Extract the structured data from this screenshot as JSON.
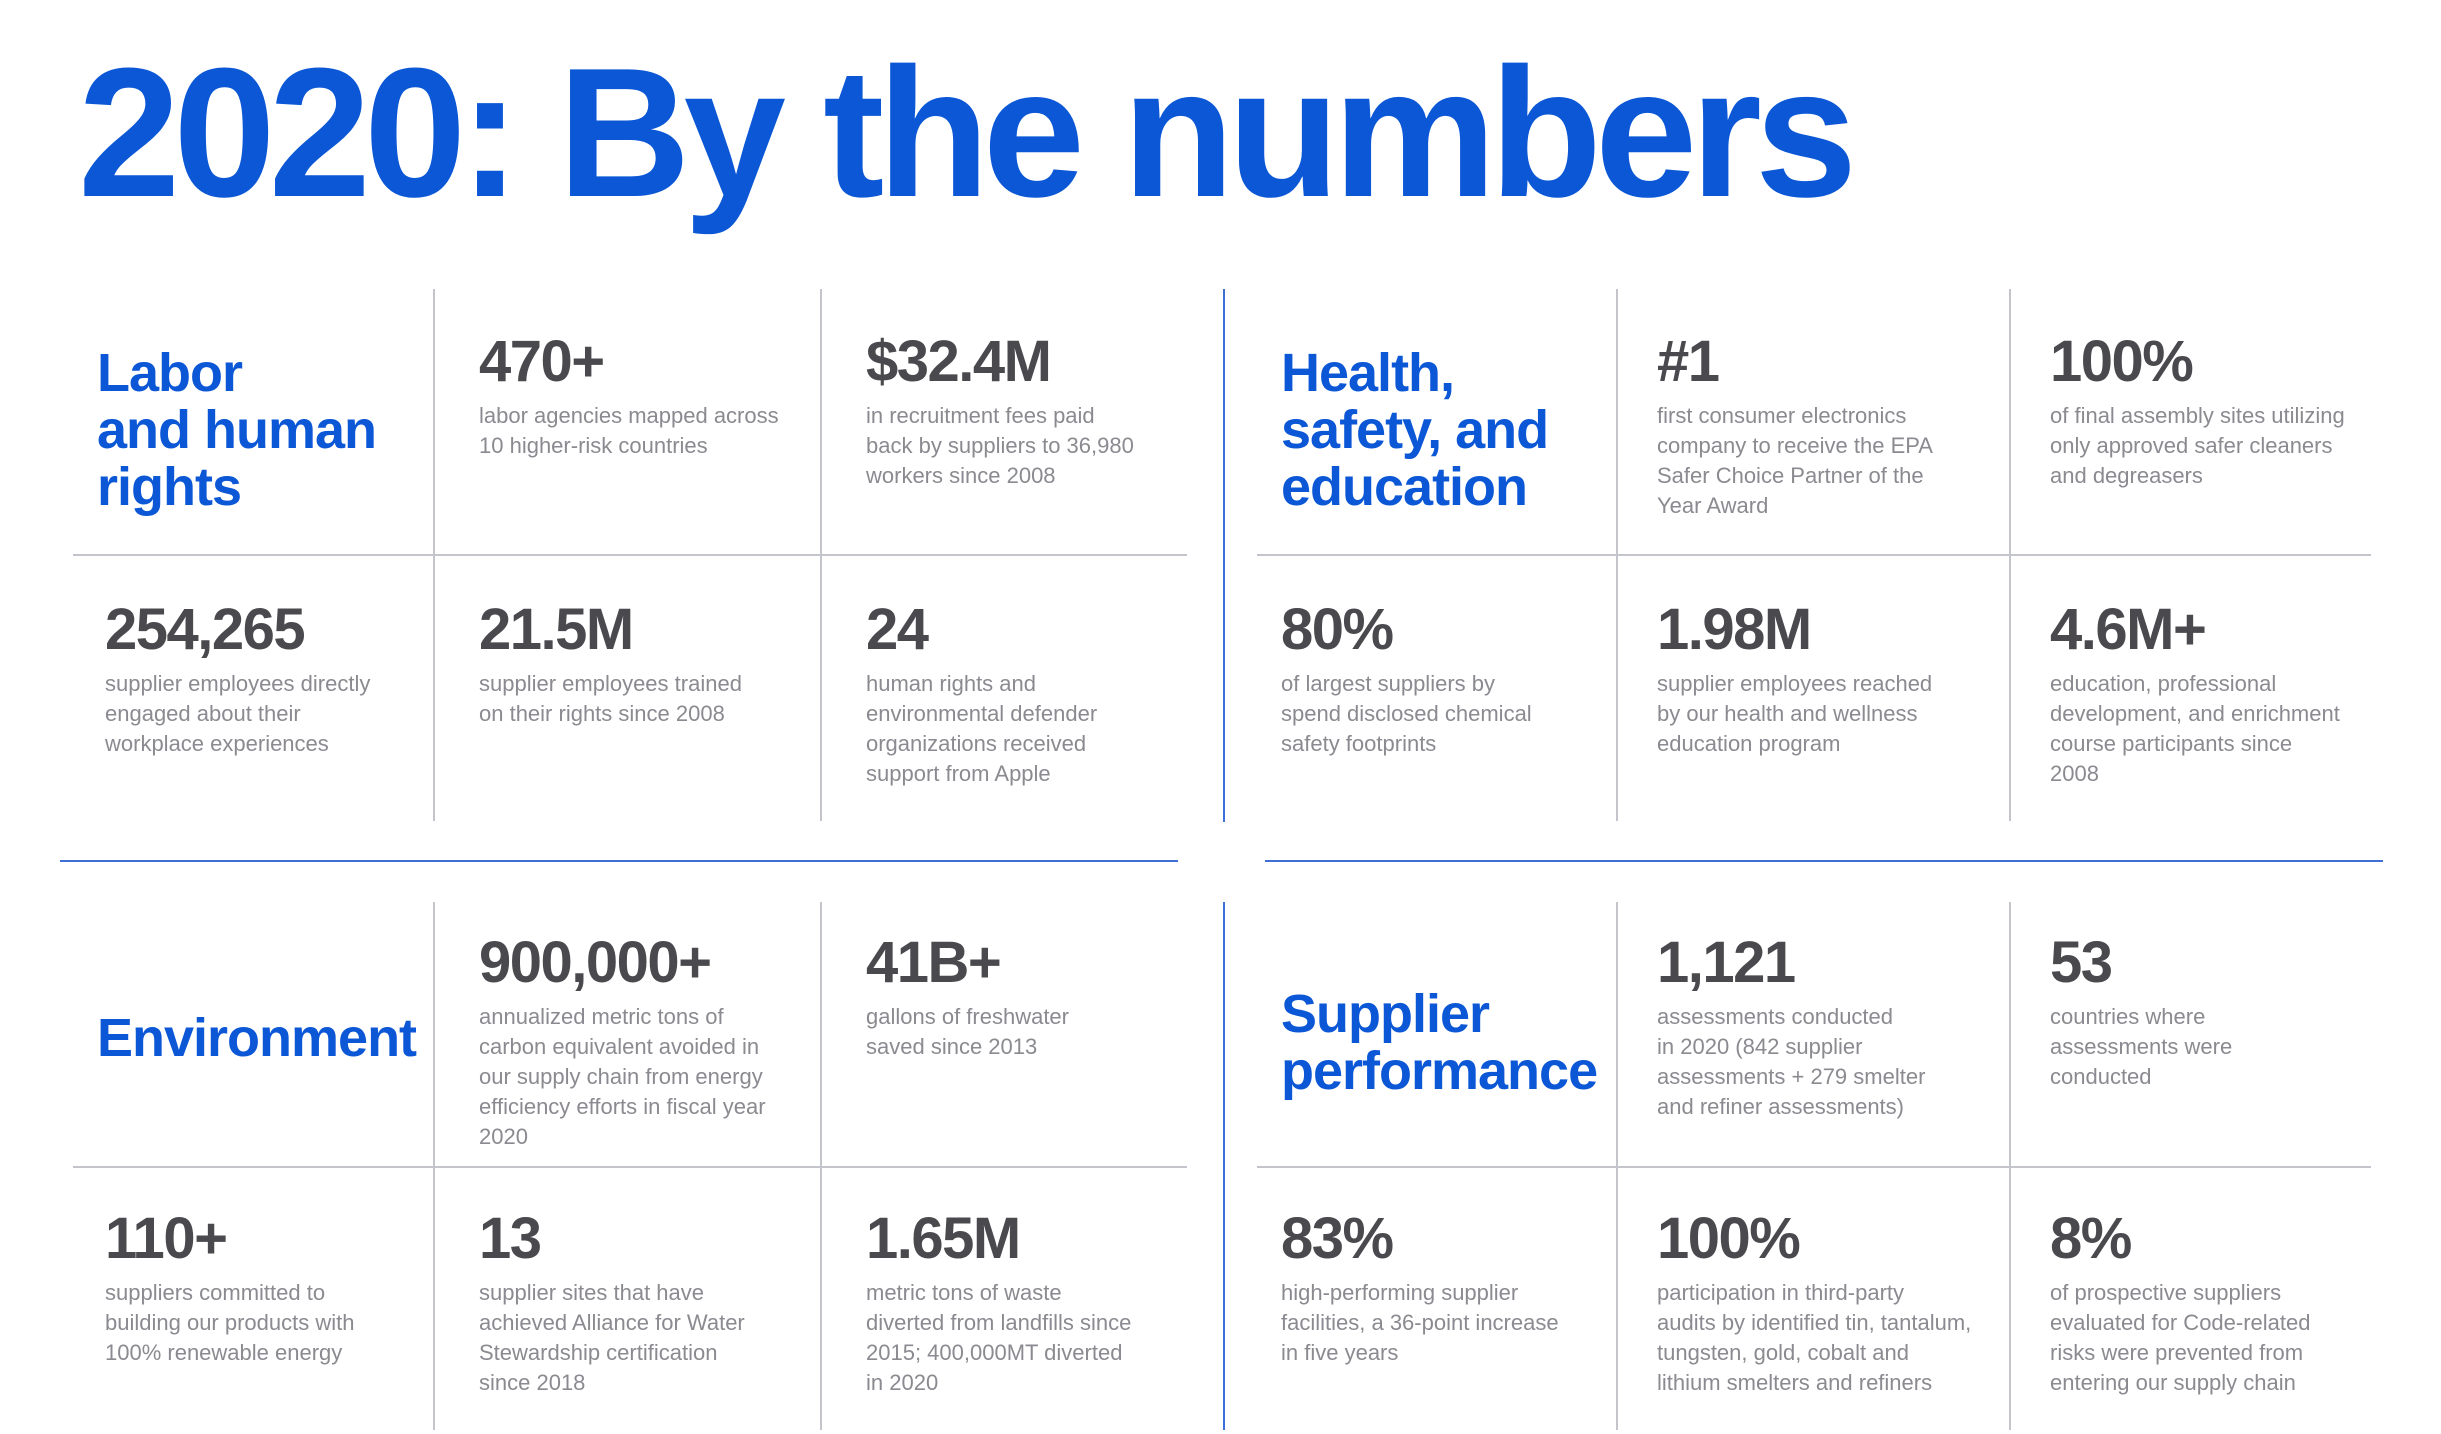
{
  "title": "2020: By the numbers",
  "colors": {
    "accent": "#0b57d6",
    "number": "#4a4a4e",
    "description": "#8a8a90",
    "grid": "#c4c4cc"
  },
  "sections": {
    "labor": {
      "label_lines": [
        "Labor",
        "and human",
        "rights"
      ],
      "stats": [
        {
          "value": "470+",
          "lines": [
            "labor agencies mapped across",
            "10 higher-risk countries"
          ]
        },
        {
          "value": "$32.4M",
          "lines": [
            "in recruitment fees paid",
            "back by suppliers to 36,980",
            "workers since 2008"
          ]
        },
        {
          "value": "254,265",
          "lines": [
            "supplier employees directly",
            "engaged about their",
            "workplace experiences"
          ]
        },
        {
          "value": "21.5M",
          "lines": [
            "supplier employees trained",
            "on their rights since 2008"
          ]
        },
        {
          "value": "24",
          "lines": [
            "human rights and",
            "environmental defender",
            "organizations received",
            "support from Apple"
          ]
        }
      ]
    },
    "health": {
      "label_lines": [
        "Health,",
        "safety, and",
        "education"
      ],
      "stats": [
        {
          "value": "#1",
          "lines": [
            "first consumer electronics",
            "company to receive the EPA",
            "Safer Choice Partner of the",
            "Year Award"
          ]
        },
        {
          "value": "100%",
          "lines": [
            "of final assembly sites utilizing",
            "only approved safer cleaners",
            "and degreasers"
          ]
        },
        {
          "value": "80%",
          "lines": [
            "of largest suppliers by",
            "spend disclosed chemical",
            "safety footprints"
          ]
        },
        {
          "value": "1.98M",
          "lines": [
            "supplier employees reached",
            "by our health and wellness",
            "education program"
          ]
        },
        {
          "value": "4.6M+",
          "lines": [
            "education, professional",
            "development, and enrichment",
            "course participants since",
            "2008"
          ]
        }
      ]
    },
    "environment": {
      "label_lines": [
        "Environment"
      ],
      "stats": [
        {
          "value": "900,000+",
          "lines": [
            "annualized metric tons of",
            "carbon equivalent avoided in",
            "our supply chain from energy",
            "efficiency efforts in fiscal year",
            "2020"
          ]
        },
        {
          "value": "41B+",
          "lines": [
            "gallons of freshwater",
            "saved since 2013"
          ]
        },
        {
          "value": "110+",
          "lines": [
            "suppliers committed to",
            "building our products with",
            "100% renewable energy"
          ]
        },
        {
          "value": "13",
          "lines": [
            "supplier sites that have",
            "achieved Alliance for Water",
            "Stewardship certification",
            "since 2018"
          ]
        },
        {
          "value": "1.65M",
          "lines": [
            "metric tons of waste",
            "diverted from landfills since",
            "2015; 400,000MT diverted",
            "in 2020"
          ]
        }
      ]
    },
    "supplier": {
      "label_lines": [
        "Supplier",
        "performance"
      ],
      "stats": [
        {
          "value": "1,121",
          "lines": [
            "assessments conducted",
            "in 2020 (842 supplier",
            "assessments + 279 smelter",
            "and refiner assessments)"
          ]
        },
        {
          "value": "53",
          "lines": [
            "countries where",
            "assessments were",
            "conducted"
          ]
        },
        {
          "value": "83%",
          "lines": [
            "high-performing supplier",
            "facilities, a 36-point increase",
            "in five years"
          ]
        },
        {
          "value": "100%",
          "lines": [
            "participation in third-party",
            "audits by identified tin, tantalum,",
            "tungsten, gold, cobalt and",
            "lithium smelters and refiners"
          ]
        },
        {
          "value": "8%",
          "lines": [
            "of prospective suppliers",
            "evaluated for Code-related",
            "risks were prevented from",
            "entering our supply chain"
          ]
        }
      ]
    }
  }
}
